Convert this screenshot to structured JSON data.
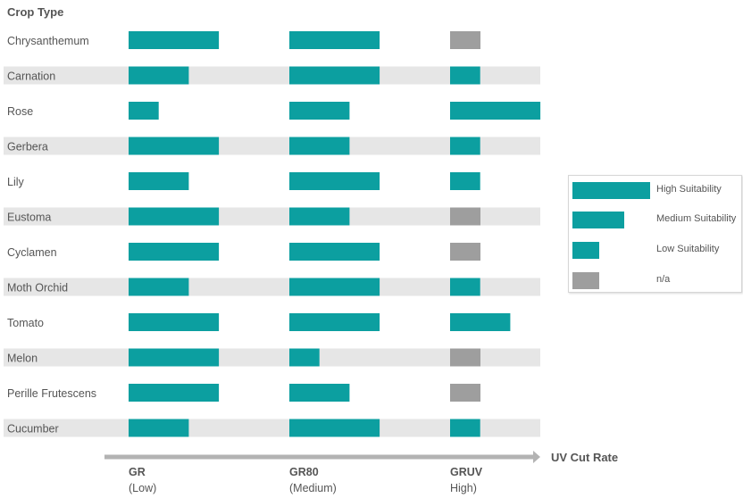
{
  "colors": {
    "teal": "#0c9fa0",
    "na": "#9e9e9e",
    "stripe": "#e6e6e6",
    "arrow": "#b3b3b3",
    "text": "#555555"
  },
  "chart_data": {
    "type": "bar",
    "title": "Crop Type",
    "axis_label": "UV Cut Rate",
    "groups": [
      {
        "name": "GR",
        "sub": "(Low)"
      },
      {
        "name": "GR80",
        "sub": "(Medium)"
      },
      {
        "name": "GRUV",
        "sub": "High)"
      }
    ],
    "level_scale": {
      "3": "High Suitability",
      "2": "Medium Suitability",
      "1": "Low Suitability",
      "0": "n/a"
    },
    "crops": [
      {
        "name": "Chrysanthemum",
        "levels": [
          3,
          3,
          0
        ]
      },
      {
        "name": "Carnation",
        "levels": [
          2,
          3,
          1
        ]
      },
      {
        "name": "Rose",
        "levels": [
          1,
          2,
          3
        ]
      },
      {
        "name": "Gerbera",
        "levels": [
          3,
          2,
          1
        ]
      },
      {
        "name": "Lily",
        "levels": [
          2,
          3,
          1
        ]
      },
      {
        "name": "Eustoma",
        "levels": [
          3,
          2,
          0
        ]
      },
      {
        "name": "Cyclamen",
        "levels": [
          3,
          3,
          0
        ]
      },
      {
        "name": "Moth Orchid",
        "levels": [
          2,
          3,
          1
        ]
      },
      {
        "name": "Tomato",
        "levels": [
          3,
          3,
          2
        ]
      },
      {
        "name": "Melon",
        "levels": [
          3,
          1,
          0
        ]
      },
      {
        "name": "Perille Frutescens",
        "levels": [
          3,
          2,
          0
        ]
      },
      {
        "name": "Cucumber",
        "levels": [
          2,
          3,
          1
        ]
      }
    ],
    "legend": [
      {
        "label": "High Suitability",
        "level": 3
      },
      {
        "label": "Medium Suitability",
        "level": 2
      },
      {
        "label": "Low Suitability",
        "level": 1
      },
      {
        "label": "n/a",
        "level": 0
      }
    ]
  }
}
